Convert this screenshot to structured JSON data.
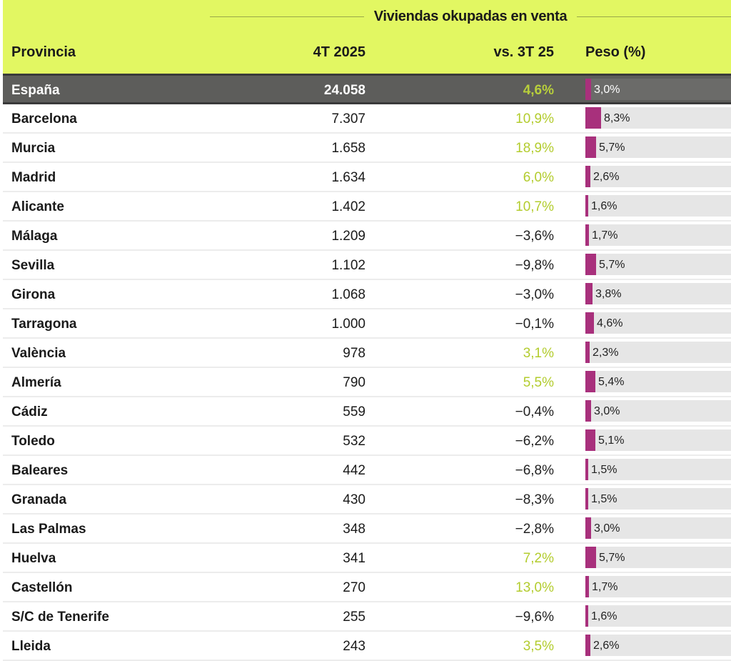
{
  "header": {
    "title": "Viviendas okupadas en venta",
    "columns": [
      "Provincia",
      "4T 2025",
      "vs. 3T 25",
      "Peso (%)"
    ]
  },
  "colors": {
    "header_bg": "#e2f762",
    "bar": "#a8307c",
    "positive": "#b3cc2e",
    "total_bg": "#5d5d5b"
  },
  "total": {
    "name": "España",
    "value": "24.058",
    "change": "4,6%",
    "positive": true,
    "peso": "3,0%",
    "peso_num": 3.0
  },
  "rows": [
    {
      "name": "Barcelona",
      "value": "7.307",
      "change": "10,9%",
      "positive": true,
      "peso": "8,3%",
      "peso_num": 8.3
    },
    {
      "name": "Murcia",
      "value": "1.658",
      "change": "18,9%",
      "positive": true,
      "peso": "5,7%",
      "peso_num": 5.7
    },
    {
      "name": "Madrid",
      "value": "1.634",
      "change": "6,0%",
      "positive": true,
      "peso": "2,6%",
      "peso_num": 2.6
    },
    {
      "name": "Alicante",
      "value": "1.402",
      "change": "10,7%",
      "positive": true,
      "peso": "1,6%",
      "peso_num": 1.6
    },
    {
      "name": "Málaga",
      "value": "1.209",
      "change": "−3,6%",
      "positive": false,
      "peso": "1,7%",
      "peso_num": 1.7
    },
    {
      "name": "Sevilla",
      "value": "1.102",
      "change": "−9,8%",
      "positive": false,
      "peso": "5,7%",
      "peso_num": 5.7
    },
    {
      "name": "Girona",
      "value": "1.068",
      "change": "−3,0%",
      "positive": false,
      "peso": "3,8%",
      "peso_num": 3.8
    },
    {
      "name": "Tarragona",
      "value": "1.000",
      "change": "−0,1%",
      "positive": false,
      "peso": "4,6%",
      "peso_num": 4.6
    },
    {
      "name": "València",
      "value": "978",
      "change": "3,1%",
      "positive": true,
      "peso": "2,3%",
      "peso_num": 2.3
    },
    {
      "name": "Almería",
      "value": "790",
      "change": "5,5%",
      "positive": true,
      "peso": "5,4%",
      "peso_num": 5.4
    },
    {
      "name": "Cádiz",
      "value": "559",
      "change": "−0,4%",
      "positive": false,
      "peso": "3,0%",
      "peso_num": 3.0
    },
    {
      "name": "Toledo",
      "value": "532",
      "change": "−6,2%",
      "positive": false,
      "peso": "5,1%",
      "peso_num": 5.1
    },
    {
      "name": "Baleares",
      "value": "442",
      "change": "−6,8%",
      "positive": false,
      "peso": "1,5%",
      "peso_num": 1.5
    },
    {
      "name": "Granada",
      "value": "430",
      "change": "−8,3%",
      "positive": false,
      "peso": "1,5%",
      "peso_num": 1.5
    },
    {
      "name": "Las Palmas",
      "value": "348",
      "change": "−2,8%",
      "positive": false,
      "peso": "3,0%",
      "peso_num": 3.0
    },
    {
      "name": "Huelva",
      "value": "341",
      "change": "7,2%",
      "positive": true,
      "peso": "5,7%",
      "peso_num": 5.7
    },
    {
      "name": "Castellón",
      "value": "270",
      "change": "13,0%",
      "positive": true,
      "peso": "1,7%",
      "peso_num": 1.7
    },
    {
      "name": "S/C de Tenerife",
      "value": "255",
      "change": "−9,6%",
      "positive": false,
      "peso": "1,6%",
      "peso_num": 1.6
    },
    {
      "name": "Lleida",
      "value": "243",
      "change": "3,5%",
      "positive": true,
      "peso": "2,6%",
      "peso_num": 2.6
    }
  ]
}
